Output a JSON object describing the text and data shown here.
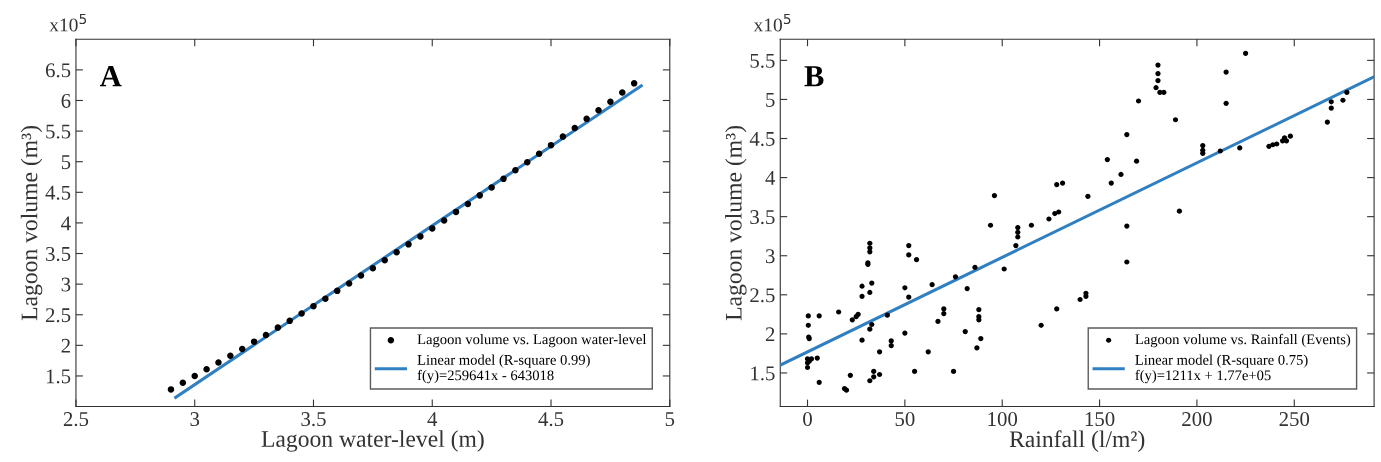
{
  "chart_data": [
    {
      "type": "scatter",
      "xlabel": "Lagoon water-level (m)",
      "ylabel": "Lagoon volume (m³)",
      "annotations": [
        "A",
        "x10$^{5}$"
      ],
      "xlim": [
        2.5,
        5
      ],
      "ylim": [
        1.0,
        7.0
      ],
      "xticks": [
        2.5,
        3,
        3.5,
        4,
        4.5,
        5
      ],
      "yticks": [
        1.5,
        2,
        2.5,
        3,
        3.5,
        4,
        4.5,
        5,
        5.5,
        6,
        6.5
      ],
      "grid": false,
      "legend": "bottom right",
      "series": [
        {
          "name": "Lagoon volume vs. Lagoon water-level",
          "color": "#000000",
          "marker": "circle",
          "x": [
            2.9,
            2.95,
            3.0,
            3.05,
            3.1,
            3.15,
            3.2,
            3.25,
            3.3,
            3.35,
            3.4,
            3.45,
            3.5,
            3.55,
            3.6,
            3.65,
            3.7,
            3.75,
            3.8,
            3.85,
            3.9,
            3.95,
            4.0,
            4.05,
            4.1,
            4.15,
            4.2,
            4.25,
            4.3,
            4.35,
            4.4,
            4.45,
            4.5,
            4.55,
            4.6,
            4.65,
            4.7,
            4.75,
            4.8,
            4.85
          ],
          "values": [
            1.28,
            1.39,
            1.5,
            1.61,
            1.72,
            1.83,
            1.94,
            2.06,
            2.17,
            2.29,
            2.4,
            2.52,
            2.64,
            2.76,
            2.89,
            3.01,
            3.14,
            3.26,
            3.39,
            3.52,
            3.65,
            3.78,
            3.91,
            4.04,
            4.18,
            4.31,
            4.45,
            4.58,
            4.72,
            4.86,
            4.99,
            5.13,
            5.27,
            5.41,
            5.55,
            5.7,
            5.84,
            5.98,
            6.13,
            6.28
          ]
        },
        {
          "type": "line",
          "name": "Linear model (R-square 0.99)\nf(y)=259641x - 643018",
          "color": "#2f7fc1",
          "x": [
            2.92,
            4.88
          ],
          "values": [
            1.15,
            6.24
          ]
        }
      ]
    },
    {
      "type": "scatter",
      "xlabel": "Rainfall (l/m²)",
      "ylabel": "Lagoon volume (m³)",
      "annotations": [
        "B",
        "x10$^{5}$"
      ],
      "xlim": [
        -14,
        291
      ],
      "ylim": [
        1.07,
        5.77
      ],
      "xticks": [
        0,
        50,
        100,
        150,
        200,
        250
      ],
      "yticks": [
        1.5,
        2,
        2.5,
        3,
        3.5,
        4,
        4.5,
        5,
        5.5
      ],
      "grid": false,
      "legend": "bottom right",
      "series": [
        {
          "name": "Lagoon volume vs. Rainfall (Events)",
          "color": "#000000",
          "marker": "circle",
          "x": [
            0.4,
            0.4,
            0.6,
            0.9,
            0,
            0,
            0,
            0.9,
            2,
            5,
            6,
            6,
            16,
            19,
            20,
            22,
            23,
            25,
            26,
            28,
            28,
            28,
            31,
            31,
            32,
            32,
            32,
            32,
            33,
            32,
            33,
            32,
            34,
            34,
            37,
            37,
            41,
            43,
            43,
            50,
            50,
            52,
            52,
            52,
            56,
            55,
            62,
            64,
            67,
            70,
            70,
            75,
            76,
            81,
            82,
            86,
            87,
            88,
            88,
            88,
            89,
            94,
            96,
            101,
            107,
            108,
            108,
            108,
            115,
            120,
            124,
            127,
            129,
            128,
            131,
            128,
            140,
            143,
            143,
            144,
            154,
            156,
            161,
            164,
            164,
            164,
            169,
            170,
            179,
            180,
            180,
            180,
            181,
            183,
            189,
            191,
            203,
            203,
            203,
            212,
            215,
            215,
            222,
            225,
            237,
            239,
            241,
            244,
            245,
            246,
            248,
            267,
            269,
            269,
            275,
            277
          ],
          "values": [
            2.23,
            2.11,
            1.96,
            1.94,
            1.68,
            1.63,
            1.57,
            1.65,
            1.68,
            1.69,
            1.38,
            2.23,
            2.28,
            1.3,
            1.28,
            1.47,
            2.18,
            2.22,
            2.25,
            2.61,
            2.48,
            1.92,
            2.91,
            2.89,
            3.16,
            3.1,
            3.05,
            2.53,
            2.65,
            2.06,
            2.12,
            1.4,
            1.52,
            1.45,
            1.77,
            1.48,
            2.24,
            1.91,
            1.85,
            2.01,
            2.59,
            2.47,
            3.13,
            3.01,
            2.95,
            1.52,
            1.77,
            2.63,
            2.16,
            2.32,
            2.26,
            1.52,
            2.73,
            2.03,
            2.58,
            2.85,
            1.82,
            2.31,
            2.22,
            2.18,
            1.94,
            3.39,
            3.77,
            2.83,
            3.13,
            3.36,
            3.3,
            3.24,
            3.39,
            2.11,
            3.47,
            3.54,
            3.56,
            3.91,
            3.93,
            2.32,
            2.44,
            2.52,
            2.48,
            3.76,
            4.23,
            3.93,
            4.04,
            4.55,
            3.38,
            2.92,
            4.21,
            4.98,
            5.15,
            5.44,
            5.33,
            5.24,
            5.09,
            5.09,
            4.74,
            3.57,
            4.41,
            4.35,
            4.31,
            4.34,
            5.35,
            4.95,
            4.38,
            5.59,
            4.4,
            4.42,
            4.43,
            4.47,
            4.51,
            4.47,
            4.53,
            4.71,
            4.89,
            4.97,
            4.99,
            5.09
          ]
        },
        {
          "type": "line",
          "name": "Linear model (R-square 0.75)\nf(y)=1211x + 1.77e+05",
          "color": "#2f7fc1",
          "x": [
            -14,
            291
          ],
          "values": [
            1.6,
            5.29
          ]
        }
      ]
    }
  ]
}
